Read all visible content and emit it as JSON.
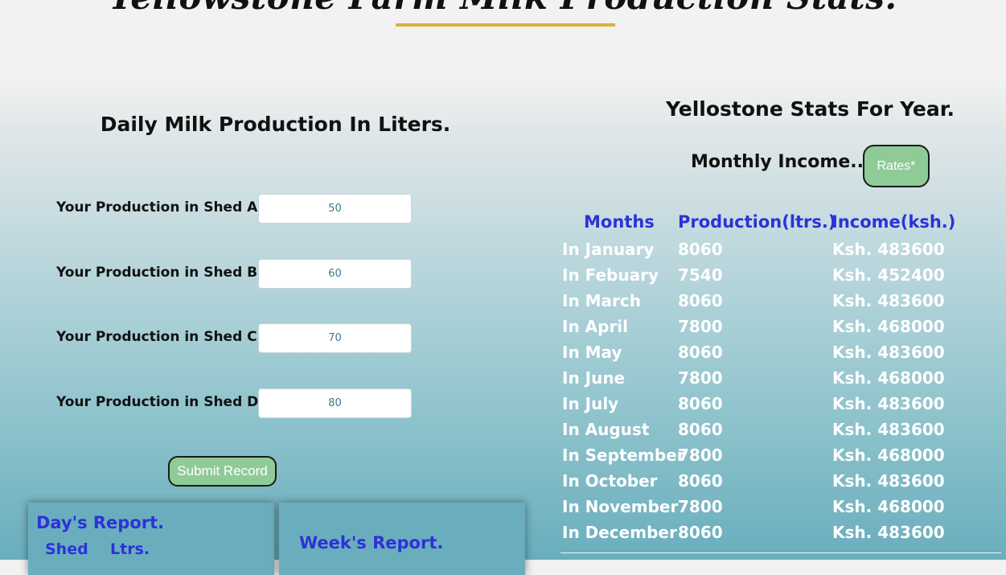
{
  "header": {
    "title": "Yellowstone Farm Milk Production Stats."
  },
  "daily_form": {
    "heading": "Daily Milk Production In Liters.",
    "sheds": [
      {
        "label": "Your Production in Shed A",
        "value": "50"
      },
      {
        "label": "Your Production in Shed B",
        "value": "60"
      },
      {
        "label": "Your Production in Shed C",
        "value": "70"
      },
      {
        "label": "Your Production in Shed D",
        "value": "80"
      }
    ],
    "submit_label": "Submit Record"
  },
  "reports": {
    "day": {
      "title": "Day's Report.",
      "columns": [
        "Shed",
        "Ltrs."
      ]
    },
    "week": {
      "title": "Week's Report."
    }
  },
  "yearly_stats": {
    "heading": "Yellostone Stats For Year.",
    "income_heading": "Monthly Income...",
    "rates_label": "Rates*",
    "columns": [
      "Months",
      "Production(ltrs.)",
      "Income(ksh.)"
    ],
    "rows": [
      {
        "month": "In January",
        "production": "8060",
        "income": "Ksh. 483600"
      },
      {
        "month": "In Febuary",
        "production": "7540",
        "income": "Ksh. 452400"
      },
      {
        "month": "In March",
        "production": "8060",
        "income": "Ksh. 483600"
      },
      {
        "month": "In April",
        "production": "7800",
        "income": "Ksh. 468000"
      },
      {
        "month": "In May",
        "production": "8060",
        "income": "Ksh. 483600"
      },
      {
        "month": "In June",
        "production": "7800",
        "income": "Ksh. 468000"
      },
      {
        "month": "In July",
        "production": "8060",
        "income": "Ksh. 483600"
      },
      {
        "month": "In August",
        "production": "8060",
        "income": "Ksh. 483600"
      },
      {
        "month": "In September",
        "production": "7800",
        "income": "Ksh. 468000"
      },
      {
        "month": "In October",
        "production": "8060",
        "income": "Ksh. 483600"
      },
      {
        "month": "In November",
        "production": "7800",
        "income": "Ksh. 468000"
      },
      {
        "month": "In December",
        "production": "8060",
        "income": "Ksh. 483600"
      }
    ]
  },
  "colors": {
    "accent_gold": "#d9b23a",
    "button_green": "#8fcb97",
    "heading_blue": "#2d32d6"
  }
}
